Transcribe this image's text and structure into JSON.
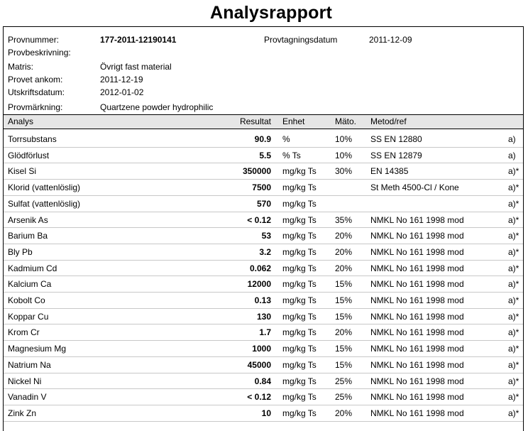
{
  "title": "Analysrapport",
  "info": {
    "provnummer_label": "Provnummer:",
    "provnummer_value": "177-2011-12190141",
    "provtagningsdatum_label": "Provtagningsdatum",
    "provtagningsdatum_value": "2011-12-09",
    "provbeskrivning_label": "Provbeskrivning:",
    "matris_label": "Matris:",
    "matris_value": "Övrigt fast material",
    "ankom_label": "Provet ankom:",
    "ankom_value": "2011-12-19",
    "utskrift_label": "Utskriftsdatum:",
    "utskrift_value": "2012-01-02",
    "markning_label": "Provmärkning:",
    "markning_value": "Quartzene powder hydrophilic"
  },
  "table": {
    "headers": [
      "Analys",
      "Resultat",
      "Enhet",
      "Mäto.",
      "Metod/ref"
    ],
    "rows": [
      {
        "analys": "Torrsubstans",
        "resultat": "90.9",
        "enhet": "%",
        "mato": "10%",
        "metod": "SS EN 12880",
        "ref": "a)"
      },
      {
        "analys": "Glödförlust",
        "resultat": "5.5",
        "enhet": "% Ts",
        "mato": "10%",
        "metod": "SS EN 12879",
        "ref": "a)"
      },
      {
        "analys": "Kisel Si",
        "resultat": "350000",
        "enhet": "mg/kg Ts",
        "mato": "30%",
        "metod": "EN 14385",
        "ref": "a)*"
      },
      {
        "analys": "Klorid (vattenlöslig)",
        "resultat": "7500",
        "enhet": "mg/kg Ts",
        "mato": "",
        "metod": "St Meth 4500-Cl / Kone",
        "ref": "a)*"
      },
      {
        "analys": "Sulfat (vattenlöslig)",
        "resultat": "570",
        "enhet": "mg/kg Ts",
        "mato": "",
        "metod": "",
        "ref": "a)*"
      },
      {
        "analys": "Arsenik As",
        "resultat": "< 0.12",
        "enhet": "mg/kg Ts",
        "mato": "35%",
        "metod": "NMKL No 161 1998 mod",
        "ref": "a)*"
      },
      {
        "analys": "Barium Ba",
        "resultat": "53",
        "enhet": "mg/kg Ts",
        "mato": "20%",
        "metod": "NMKL No 161 1998 mod",
        "ref": "a)*"
      },
      {
        "analys": "Bly Pb",
        "resultat": "3.2",
        "enhet": "mg/kg Ts",
        "mato": "20%",
        "metod": "NMKL No 161 1998 mod",
        "ref": "a)*"
      },
      {
        "analys": "Kadmium Cd",
        "resultat": "0.062",
        "enhet": "mg/kg Ts",
        "mato": "20%",
        "metod": "NMKL No 161 1998 mod",
        "ref": "a)*"
      },
      {
        "analys": "Kalcium Ca",
        "resultat": "12000",
        "enhet": "mg/kg Ts",
        "mato": "15%",
        "metod": "NMKL No 161 1998 mod",
        "ref": "a)*"
      },
      {
        "analys": "Kobolt Co",
        "resultat": "0.13",
        "enhet": "mg/kg Ts",
        "mato": "15%",
        "metod": "NMKL No 161 1998 mod",
        "ref": "a)*"
      },
      {
        "analys": "Koppar Cu",
        "resultat": "130",
        "enhet": "mg/kg Ts",
        "mato": "15%",
        "metod": "NMKL No 161 1998 mod",
        "ref": "a)*"
      },
      {
        "analys": "Krom Cr",
        "resultat": "1.7",
        "enhet": "mg/kg Ts",
        "mato": "20%",
        "metod": "NMKL No 161 1998 mod",
        "ref": "a)*"
      },
      {
        "analys": "Magnesium Mg",
        "resultat": "1000",
        "enhet": "mg/kg Ts",
        "mato": "15%",
        "metod": "NMKL No 161 1998 mod",
        "ref": "a)*"
      },
      {
        "analys": "Natrium Na",
        "resultat": "45000",
        "enhet": "mg/kg Ts",
        "mato": "15%",
        "metod": "NMKL No 161 1998 mod",
        "ref": "a)*"
      },
      {
        "analys": "Nickel Ni",
        "resultat": "0.84",
        "enhet": "mg/kg Ts",
        "mato": "25%",
        "metod": "NMKL No 161 1998 mod",
        "ref": "a)*"
      },
      {
        "analys": "Vanadin V",
        "resultat": "< 0.12",
        "enhet": "mg/kg Ts",
        "mato": "25%",
        "metod": "NMKL No 161 1998 mod",
        "ref": "a)*"
      },
      {
        "analys": "Zink Zn",
        "resultat": "10",
        "enhet": "mg/kg Ts",
        "mato": "20%",
        "metod": "NMKL No 161 1998 mod",
        "ref": "a)*"
      }
    ]
  }
}
